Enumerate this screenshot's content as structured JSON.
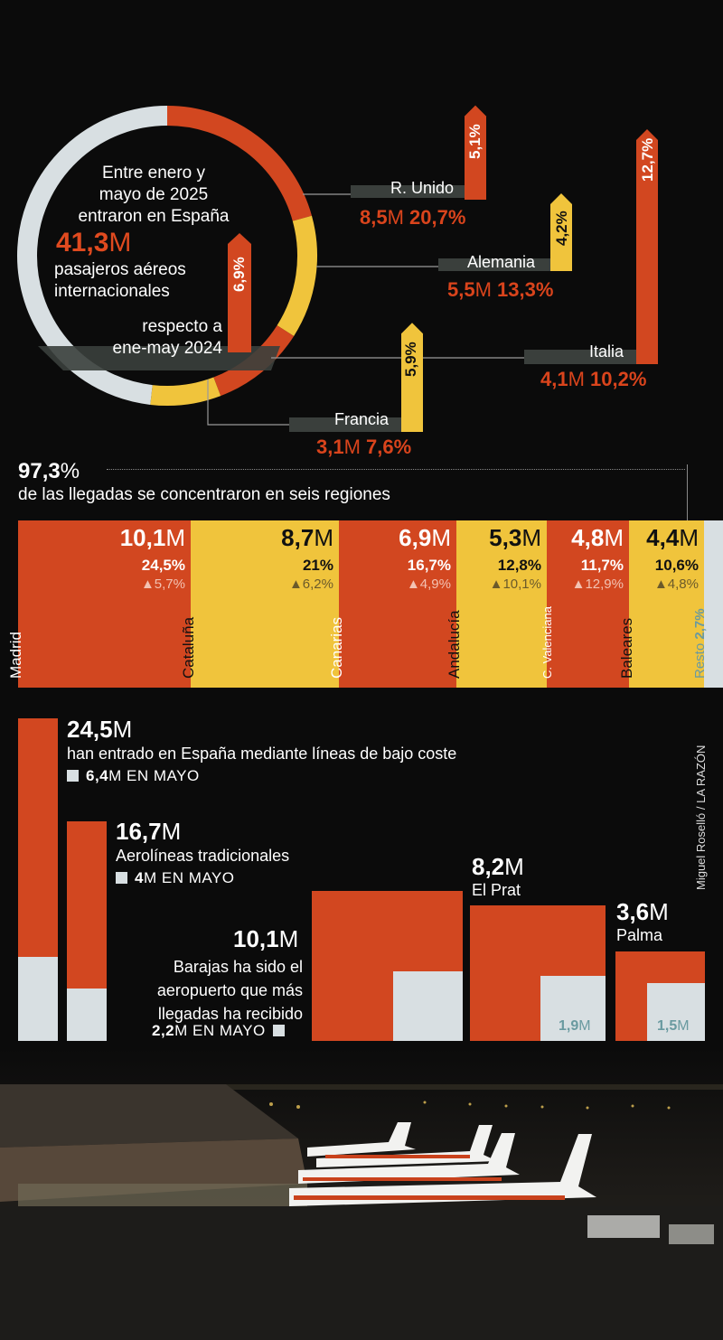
{
  "colors": {
    "red": "#d24720",
    "yellow": "#f0c43c",
    "grey": "#d8dfe2",
    "dark_bar": "#3a3f3c",
    "teal": "#6a9aa0"
  },
  "donut": {
    "intro_line1": "Entre enero y",
    "intro_line2": "mayo de 2025",
    "intro_line3": "entraron en España",
    "total_value": "41,3",
    "total_unit": "M",
    "desc_line1": "pasajeros aéreos",
    "desc_line2": "internacionales",
    "growth": "6,9%",
    "compare_line1": "respecto a",
    "compare_line2": "ene-may 2024"
  },
  "countries": [
    {
      "name": "R. Unido",
      "value": "8,5",
      "unit": "M",
      "share": "20,7%",
      "growth": "5,1%"
    },
    {
      "name": "Alemania",
      "value": "5,5",
      "unit": "M",
      "share": "13,3%",
      "growth": "4,2%"
    },
    {
      "name": "Italia",
      "value": "4,1",
      "unit": "M",
      "share": "10,2%",
      "growth": "12,7%"
    },
    {
      "name": "Francia",
      "value": "3,1",
      "unit": "M",
      "share": "7,6%",
      "growth": "5,9%"
    }
  ],
  "concentration": {
    "value": "97,3",
    "unit": "%",
    "text": "de las llegadas se concentraron en seis regiones"
  },
  "regions": [
    {
      "name": "Madrid",
      "value": "10,1",
      "unit": "M",
      "share": "24,5%",
      "growth": "▲5,7%"
    },
    {
      "name": "Cataluña",
      "value": "8,7",
      "unit": "M",
      "share": "21%",
      "growth": "▲6,2%"
    },
    {
      "name": "Canarias",
      "value": "6,9",
      "unit": "M",
      "share": "16,7%",
      "growth": "▲4,9%"
    },
    {
      "name": "Andalucía",
      "value": "5,3",
      "unit": "M",
      "share": "12,8%",
      "growth": "▲10,1%"
    },
    {
      "name": "C. Valenciana",
      "value": "4,8",
      "unit": "M",
      "share": "11,7%",
      "growth": "▲12,9%"
    },
    {
      "name": "Baleares",
      "value": "4,4",
      "unit": "M",
      "share": "10,6%",
      "growth": "▲4,8%"
    },
    {
      "name": "Resto",
      "share": "2,7%"
    }
  ],
  "airlines": {
    "low_cost": {
      "value": "24,5",
      "unit": "M",
      "desc": "han entrado en España mediante líneas de bajo coste",
      "may_value": "6,4",
      "may_text": "M EN MAYO"
    },
    "traditional": {
      "value": "16,7",
      "unit": "M",
      "desc": "Aerolíneas tradicionales",
      "may_value": "4",
      "may_text": "M EN MAYO"
    }
  },
  "airports": {
    "barajas": {
      "value": "10,1",
      "unit": "M",
      "desc_line1": "Barajas ha sido el",
      "desc_line2": "aeropuerto que más",
      "desc_line3": "llegadas ha recibido",
      "may_value": "2,2",
      "may_text": "M EN MAYO"
    },
    "el_prat": {
      "value": "8,2",
      "unit": "M",
      "name": "El Prat",
      "may_value": "1,9",
      "may_unit": "M"
    },
    "palma": {
      "value": "3,6",
      "unit": "M",
      "name": "Palma",
      "may_value": "1,5",
      "may_unit": "M"
    }
  },
  "credit": "Miguel Roselló / LA RAZÓN",
  "chart_data": [
    {
      "type": "pie",
      "categories": [
        "R. Unido",
        "Alemania",
        "Italia",
        "Francia"
      ],
      "values": [
        20.7,
        13.3,
        10.2,
        7.6
      ]
    },
    {
      "type": "bar",
      "categories": [
        "R. Unido",
        "Alemania",
        "Italia",
        "Francia"
      ],
      "values": [
        5.1,
        4.2,
        12.7,
        5.9
      ]
    },
    {
      "type": "bar",
      "categories": [
        "Madrid",
        "Cataluña",
        "Canarias",
        "Andalucía",
        "C. Valenciana",
        "Baleares",
        "Resto"
      ],
      "values": [
        24.5,
        21,
        16.7,
        12.8,
        11.7,
        10.6,
        2.7
      ]
    },
    {
      "type": "bar",
      "categories": [
        "Bajo coste",
        "Tradicionales"
      ],
      "series": [
        {
          "values": [
            24.5,
            16.7
          ]
        },
        {
          "values": [
            6.4,
            4
          ]
        }
      ]
    },
    {
      "type": "bar",
      "categories": [
        "Barajas",
        "El Prat",
        "Palma"
      ],
      "series": [
        {
          "values": [
            10.1,
            8.2,
            3.6
          ]
        },
        {
          "values": [
            2.2,
            1.9,
            1.5
          ]
        }
      ]
    }
  ]
}
